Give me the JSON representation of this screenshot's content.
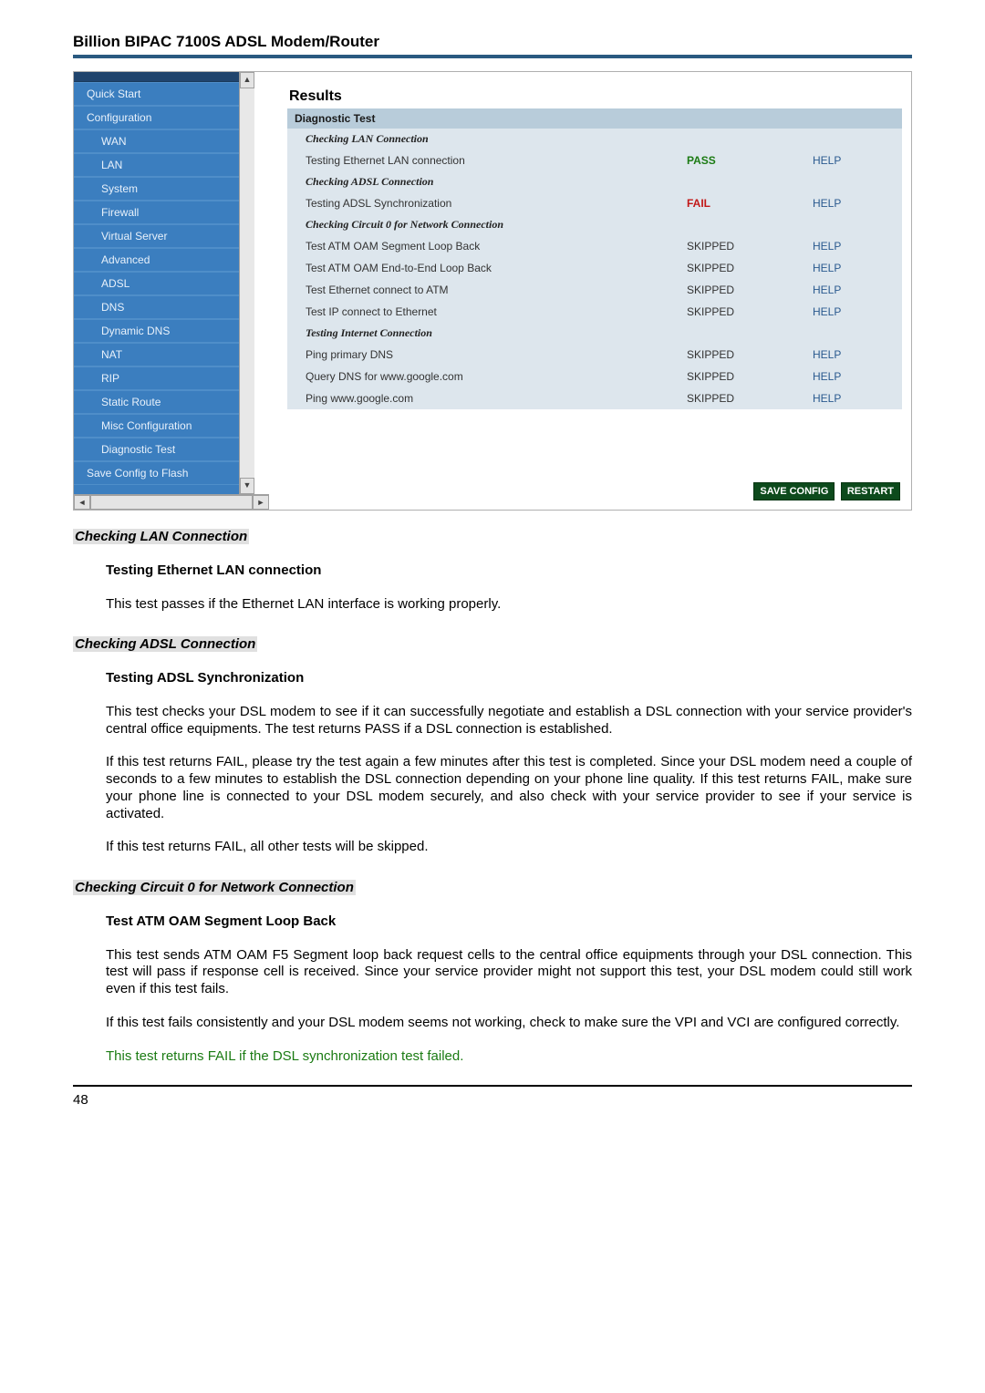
{
  "page": {
    "title": "Billion BIPAC 7100S ADSL Modem/Router",
    "number": "48"
  },
  "sidebar": {
    "items": [
      {
        "label": "Quick Start",
        "indent": false
      },
      {
        "label": "Configuration",
        "indent": false
      },
      {
        "label": "WAN",
        "indent": true
      },
      {
        "label": "LAN",
        "indent": true
      },
      {
        "label": "System",
        "indent": true
      },
      {
        "label": "Firewall",
        "indent": true
      },
      {
        "label": "Virtual Server",
        "indent": true
      },
      {
        "label": "Advanced",
        "indent": true
      },
      {
        "label": "ADSL",
        "indent": true
      },
      {
        "label": "DNS",
        "indent": true
      },
      {
        "label": "Dynamic DNS",
        "indent": true
      },
      {
        "label": "NAT",
        "indent": true
      },
      {
        "label": "RIP",
        "indent": true
      },
      {
        "label": "Static Route",
        "indent": true
      },
      {
        "label": "Misc Configuration",
        "indent": true
      },
      {
        "label": "Diagnostic Test",
        "indent": true
      },
      {
        "label": "Save Config to Flash",
        "indent": false
      }
    ]
  },
  "results": {
    "title": "Results",
    "header": "Diagnostic Test",
    "help": "HELP",
    "sections": [
      {
        "title": "Checking LAN Connection",
        "rows": [
          {
            "name": "Testing Ethernet LAN connection",
            "status": "PASS",
            "cls": "pass"
          }
        ]
      },
      {
        "title": "Checking ADSL Connection",
        "rows": [
          {
            "name": "Testing ADSL Synchronization",
            "status": "FAIL",
            "cls": "fail"
          }
        ]
      },
      {
        "title": "Checking Circuit 0 for Network Connection",
        "rows": [
          {
            "name": "Test ATM OAM Segment Loop Back",
            "status": "SKIPPED",
            "cls": "skipped"
          },
          {
            "name": "Test ATM OAM End-to-End Loop Back",
            "status": "SKIPPED",
            "cls": "skipped"
          },
          {
            "name": "Test Ethernet connect to ATM",
            "status": "SKIPPED",
            "cls": "skipped"
          },
          {
            "name": "Test IP connect to Ethernet",
            "status": "SKIPPED",
            "cls": "skipped"
          }
        ]
      },
      {
        "title": "Testing Internet Connection",
        "rows": [
          {
            "name": "Ping primary DNS",
            "status": "SKIPPED",
            "cls": "skipped"
          },
          {
            "name": "Query DNS for www.google.com",
            "status": "SKIPPED",
            "cls": "skipped"
          },
          {
            "name": "Ping www.google.com",
            "status": "SKIPPED",
            "cls": "skipped"
          }
        ]
      }
    ],
    "buttons": {
      "save": "SAVE CONFIG",
      "restart": "RESTART"
    }
  },
  "doc": {
    "s1": {
      "h": "Checking LAN Connection",
      "sub": "Testing Ethernet LAN connection",
      "p1": "This test passes if the Ethernet LAN interface is working properly."
    },
    "s2": {
      "h": "Checking ADSL Connection",
      "sub": "Testing ADSL Synchronization",
      "p1": "This test checks your DSL modem to see if it can successfully negotiate and establish a DSL connection with your service provider's central office equipments. The test returns PASS if a DSL connection is established.",
      "p2": "If this test returns FAIL, please try the test again a few minutes after this test is completed.  Since your DSL modem need a couple of seconds to a few minutes to establish the DSL connection depending on your phone line quality. If this test returns FAIL, make sure your phone line is connected to your DSL modem securely, and also check with your service provider to see if your service is activated.",
      "p3": "If this test returns FAIL, all other tests will be skipped."
    },
    "s3": {
      "h": "Checking Circuit 0 for Network Connection",
      "sub": "Test ATM OAM Segment Loop Back",
      "p1": "This test sends ATM OAM F5 Segment loop back request cells to the central office equipments through your DSL connection. This test will pass if response cell is received. Since your service provider might not support this test, your DSL modem could still work even if this test fails.",
      "p2": "If this test fails consistently and your DSL modem seems not working, check to make sure the VPI and VCI are configured correctly.",
      "note": "This test returns FAIL if the DSL synchronization test failed."
    }
  }
}
